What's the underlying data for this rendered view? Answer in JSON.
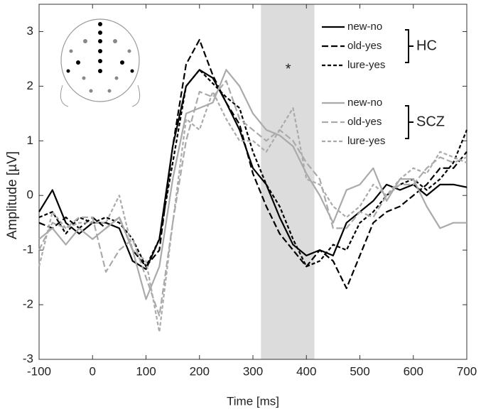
{
  "chart_data": {
    "type": "line",
    "x_label": "Time [ms]",
    "y_label": "Amplitude [µV]",
    "xlim": [
      -100,
      700
    ],
    "ylim": [
      -3,
      3.5
    ],
    "xticks": [
      -100,
      0,
      100,
      200,
      300,
      400,
      500,
      600,
      700
    ],
    "yticks": [
      -3,
      -2,
      -1,
      0,
      1,
      2,
      3
    ],
    "shaded_region": {
      "x": [
        315,
        415
      ],
      "color": "#dcdcdc"
    },
    "annotations": [
      {
        "text": "*",
        "x": 366,
        "y": 2.3
      }
    ],
    "legend_groups": [
      "HC",
      "SCZ"
    ],
    "x": [
      -100,
      -75,
      -50,
      -25,
      0,
      25,
      50,
      75,
      100,
      125,
      150,
      175,
      200,
      225,
      250,
      275,
      300,
      325,
      350,
      375,
      400,
      425,
      450,
      475,
      500,
      525,
      550,
      575,
      600,
      625,
      650,
      675,
      700
    ],
    "series": [
      {
        "name": "new-no",
        "color": "#000000",
        "linestyle": "solid",
        "values": [
          -0.3,
          0.1,
          -0.5,
          -0.7,
          -0.5,
          -0.5,
          -0.6,
          -1.2,
          -1.35,
          -0.8,
          0.9,
          2.0,
          2.3,
          2.15,
          1.7,
          1.2,
          0.5,
          0.2,
          -0.4,
          -0.9,
          -1.1,
          -1.0,
          -1.1,
          -0.5,
          -0.3,
          -0.1,
          0.2,
          0.1,
          0.2,
          0.0,
          0.2,
          0.2,
          0.15
        ]
      },
      {
        "name": "old-yes",
        "color": "#000000",
        "linestyle": "dashed",
        "values": [
          -0.5,
          -0.6,
          -0.4,
          -0.6,
          -0.4,
          -0.6,
          -0.4,
          -1.0,
          -1.3,
          -1.0,
          0.9,
          2.4,
          2.85,
          2.2,
          1.7,
          1.3,
          0.4,
          -0.2,
          -0.7,
          -1.0,
          -1.3,
          -1.0,
          -1.2,
          -1.7,
          -1.1,
          -0.5,
          -0.3,
          -0.2,
          0.0,
          0.2,
          0.5,
          0.5,
          0.8
        ]
      },
      {
        "name": "lure-yes",
        "color": "#000000",
        "linestyle": "dotted",
        "values": [
          -0.4,
          -0.3,
          -0.7,
          -0.4,
          -0.5,
          -0.4,
          -0.5,
          -0.8,
          -1.3,
          -0.8,
          0.6,
          2.0,
          2.3,
          2.05,
          1.8,
          1.6,
          0.8,
          0.2,
          -0.2,
          -0.8,
          -1.3,
          -1.2,
          -0.9,
          -1.0,
          -0.5,
          -0.3,
          0.0,
          0.2,
          0.3,
          0.1,
          0.3,
          0.6,
          1.2
        ]
      },
      {
        "name": "new-no",
        "color": "#aaaaaa",
        "linestyle": "solid",
        "values": [
          -0.8,
          -0.6,
          -0.9,
          -0.6,
          -0.8,
          -0.6,
          -0.4,
          -1.0,
          -1.9,
          -1.3,
          0.3,
          1.5,
          1.6,
          1.7,
          2.3,
          2.0,
          1.5,
          1.2,
          1.1,
          0.9,
          0.4,
          0.0,
          -0.5,
          0.1,
          0.2,
          0.5,
          -0.1,
          0.3,
          0.3,
          -0.2,
          -0.6,
          -0.5,
          -0.5
        ]
      },
      {
        "name": "old-yes",
        "color": "#aaaaaa",
        "linestyle": "dashed",
        "values": [
          -1.0,
          -0.5,
          -0.6,
          -0.4,
          -0.4,
          -1.4,
          -1.0,
          -0.8,
          -1.5,
          -2.2,
          -0.5,
          1.0,
          1.9,
          1.8,
          2.1,
          1.4,
          1.2,
          1.0,
          1.2,
          1.0,
          0.6,
          0.3,
          -0.6,
          -0.6,
          -0.3,
          -0.4,
          0.0,
          0.2,
          0.2,
          0.5,
          0.7,
          0.6,
          0.7
        ]
      },
      {
        "name": "lure-yes",
        "color": "#aaaaaa",
        "linestyle": "dotted",
        "values": [
          -1.3,
          -0.3,
          -0.6,
          -0.5,
          -0.5,
          -0.5,
          0.0,
          -1.0,
          -1.2,
          -2.5,
          -0.5,
          1.4,
          1.2,
          1.9,
          1.4,
          1.0,
          1.0,
          0.8,
          1.2,
          1.6,
          0.3,
          0.2,
          -0.2,
          -0.4,
          -0.2,
          0.2,
          0.0,
          0.3,
          0.5,
          0.4,
          0.8,
          0.7,
          0.6
        ]
      }
    ]
  }
}
